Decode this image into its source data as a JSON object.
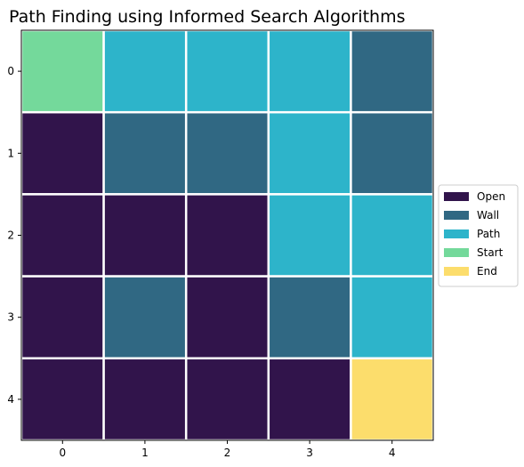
{
  "chart_data": {
    "type": "heatmap",
    "title": "Path Finding using Informed Search Algorithms",
    "x_ticks": [
      "0",
      "1",
      "2",
      "3",
      "4"
    ],
    "y_ticks": [
      "0",
      "1",
      "2",
      "3",
      "4"
    ],
    "grid": [
      [
        "Start",
        "Path",
        "Path",
        "Path",
        "Wall"
      ],
      [
        "Open",
        "Wall",
        "Wall",
        "Path",
        "Wall"
      ],
      [
        "Open",
        "Open",
        "Open",
        "Path",
        "Path"
      ],
      [
        "Open",
        "Wall",
        "Open",
        "Wall",
        "Path"
      ],
      [
        "Open",
        "Open",
        "Open",
        "Open",
        "End"
      ]
    ],
    "legend": {
      "placement": "center-right",
      "entries": [
        {
          "label": "Open",
          "color": "#31144b"
        },
        {
          "label": "Wall",
          "color": "#306883"
        },
        {
          "label": "Path",
          "color": "#2db4ca"
        },
        {
          "label": "Start",
          "color": "#74d99b"
        },
        {
          "label": "End",
          "color": "#fcdd6c"
        }
      ]
    },
    "cell_border_color": "#ffffff"
  }
}
